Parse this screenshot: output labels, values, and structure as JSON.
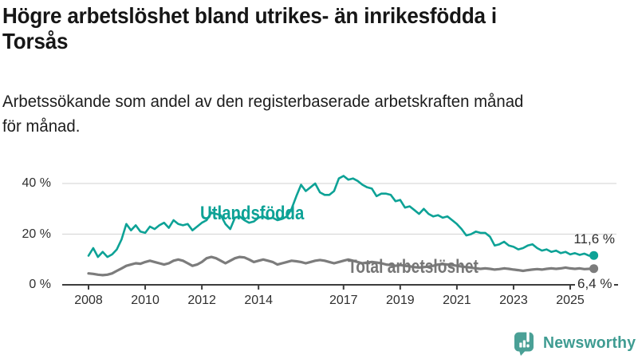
{
  "header": {
    "title_lines": [
      "Högre arbetslöshet bland utrikes- än inrikesfödda i",
      "Torsås"
    ],
    "subtitle_lines": [
      "Arbetssökande som andel av den registerbaserade arbetskraften månad",
      "för månad."
    ]
  },
  "chart_data": {
    "type": "line",
    "title": "Högre arbetslöshet bland utrikes- än inrikesfödda i Torsås",
    "subtitle": "Arbetssökande som andel av den registerbaserade arbetskraften månad för månad.",
    "unit": "%",
    "grid": "horizontal-only",
    "legend_position": "inline-labels",
    "x_start": 2008,
    "x_step": 0.16667,
    "x_axis": {
      "ticks": [
        {
          "label": "2008",
          "year": 2008
        },
        {
          "label": "2010",
          "year": 2010
        },
        {
          "label": "2012",
          "year": 2012
        },
        {
          "label": "2014",
          "year": 2014
        },
        {
          "label": "2017",
          "year": 2017
        },
        {
          "label": "2019",
          "year": 2019
        },
        {
          "label": "2021",
          "year": 2021
        },
        {
          "label": "2023",
          "year": 2023
        },
        {
          "label": "2025",
          "year": 2025
        }
      ]
    },
    "y_axis": {
      "range": [
        0,
        44
      ],
      "ticks": [
        {
          "label": "0 %",
          "value": 0
        },
        {
          "label": "20 %",
          "value": 20
        },
        {
          "label": "40 %",
          "value": 40
        }
      ]
    },
    "colors": {
      "grid": "#d9d9d9",
      "axis": "#3d3d3d",
      "tick_text": "#2f2f2f"
    },
    "series": [
      {
        "name": "Utlandsfödda",
        "color": "#0da296",
        "stroke_width": 2.6,
        "end_label": "11,6 %",
        "end_value": 11.6,
        "values": [
          11.5,
          14.5,
          11.0,
          13.0,
          11.0,
          12.0,
          14.0,
          18.0,
          24.0,
          21.5,
          23.5,
          21.0,
          20.5,
          23.0,
          22.0,
          23.5,
          24.5,
          22.5,
          25.5,
          24.0,
          23.5,
          24.0,
          21.5,
          23.0,
          24.5,
          25.5,
          28.5,
          28.0,
          27.5,
          24.0,
          22.0,
          26.5,
          27.0,
          25.5,
          24.5,
          25.0,
          26.5,
          27.0,
          26.0,
          26.5,
          25.5,
          26.0,
          27.0,
          30.0,
          35.0,
          39.5,
          37.0,
          38.5,
          40.0,
          36.5,
          35.5,
          35.5,
          37.0,
          42.0,
          43.0,
          41.5,
          42.0,
          41.0,
          39.5,
          38.5,
          38.0,
          35.0,
          36.0,
          36.0,
          35.5,
          33.0,
          33.5,
          30.5,
          31.0,
          29.5,
          28.0,
          30.0,
          28.0,
          27.0,
          27.5,
          26.5,
          27.0,
          25.5,
          24.0,
          22.0,
          19.5,
          20.0,
          21.0,
          20.5,
          20.5,
          19.0,
          15.5,
          16.0,
          17.0,
          15.5,
          15.0,
          14.0,
          14.5,
          15.5,
          16.0,
          14.5,
          13.5,
          14.0,
          13.0,
          13.5,
          12.5,
          13.0,
          12.0,
          12.5,
          11.8,
          12.3,
          11.5,
          11.6
        ]
      },
      {
        "name": "Total arbetslöshet",
        "color": "#7c7c7c",
        "stroke_width": 3.2,
        "end_label": "6,4 %",
        "end_value": 6.4,
        "values": [
          4.5,
          4.3,
          4.0,
          3.8,
          4.0,
          4.5,
          5.5,
          6.5,
          7.5,
          8.0,
          8.5,
          8.3,
          9.0,
          9.5,
          9.0,
          8.5,
          8.0,
          8.5,
          9.5,
          10.0,
          9.5,
          8.5,
          7.5,
          8.0,
          9.0,
          10.5,
          11.0,
          10.5,
          9.5,
          8.5,
          9.5,
          10.5,
          11.0,
          10.8,
          10.0,
          9.0,
          9.5,
          10.0,
          9.5,
          9.0,
          8.0,
          8.5,
          9.0,
          9.5,
          9.3,
          9.0,
          8.5,
          9.0,
          9.5,
          9.8,
          9.5,
          9.0,
          8.5,
          9.0,
          9.5,
          10.0,
          9.5,
          9.0,
          8.5,
          8.8,
          9.0,
          8.8,
          8.5,
          8.0,
          7.8,
          7.5,
          7.8,
          7.5,
          7.3,
          7.0,
          6.8,
          7.0,
          7.2,
          7.5,
          8.0,
          8.2,
          8.0,
          7.8,
          7.5,
          7.2,
          7.0,
          6.8,
          6.5,
          6.3,
          6.5,
          6.3,
          6.0,
          6.2,
          6.5,
          6.3,
          6.0,
          5.8,
          5.5,
          5.8,
          6.0,
          6.2,
          6.0,
          6.3,
          6.5,
          6.3,
          6.5,
          6.8,
          6.5,
          6.3,
          6.5,
          6.2,
          6.3,
          6.4
        ]
      }
    ],
    "series_label_colors": {
      "utlandsfodda": "#0da296",
      "total": "#767676"
    }
  },
  "footer": {
    "brand": "Newsworthy",
    "brand_color": "#3f9c92",
    "icon_color": "#4aa096"
  }
}
